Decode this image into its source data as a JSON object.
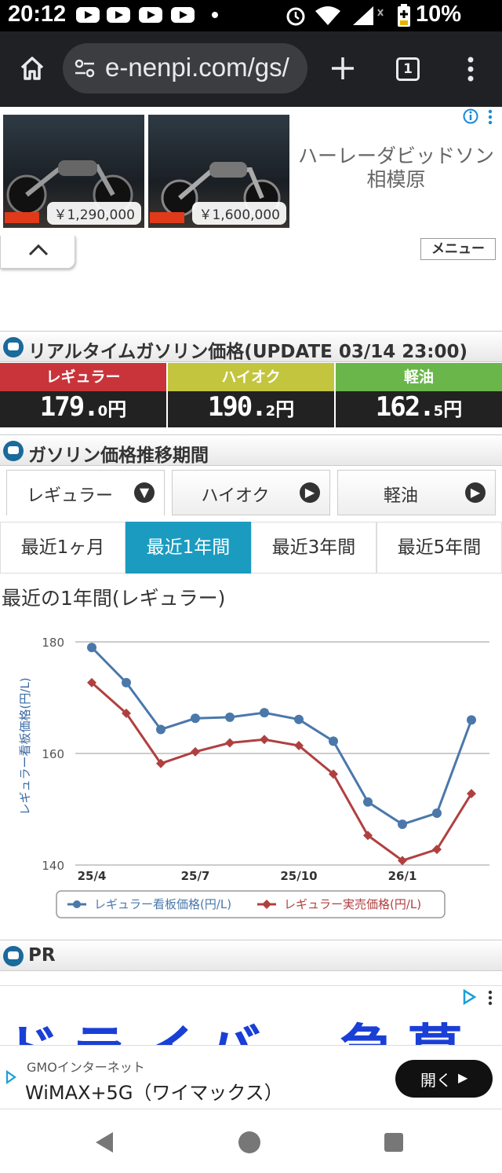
{
  "status": {
    "time": "20:12",
    "battery": "10%"
  },
  "browser": {
    "url": "e-nenpi.com/gs/",
    "tab_count": "1"
  },
  "ad_top": {
    "prices": [
      "￥1,290,000",
      "￥1,600,000"
    ],
    "dealer_line1": "ハーレーダビッドソン",
    "dealer_line2": "相模原"
  },
  "menu_label": "メニュー",
  "realtime": {
    "title": "リアルタイムガソリン価格(UPDATE 03/14 23:00)",
    "fuels": [
      {
        "name": "レギュラー",
        "int": "179.",
        "dec": "0",
        "unit": "円",
        "color": "#c9343b"
      },
      {
        "name": "ハイオク",
        "int": "190.",
        "dec": "2",
        "unit": "円",
        "color": "#c3c53e"
      },
      {
        "name": "軽油",
        "int": "162.",
        "dec": "5",
        "unit": "円",
        "color": "#6ab64a"
      }
    ]
  },
  "trend": {
    "title": "ガソリン価格推移期間",
    "fuel_tabs": [
      "レギュラー",
      "ハイオク",
      "軽油"
    ],
    "periods": [
      "最近1ヶ月",
      "最近1年間",
      "最近3年間",
      "最近5年間"
    ],
    "selected_period": 1,
    "chart_heading": "最近の1年間(レギュラー)"
  },
  "chart_data": {
    "type": "line",
    "ylabel": "レギュラー看板価格(円/L)",
    "ylim": [
      140,
      180
    ],
    "yticks": [
      140,
      160,
      180
    ],
    "xticks": [
      "25/4",
      "25/7",
      "25/10",
      "26/1"
    ],
    "grid": true,
    "legend_position": "bottom",
    "series": [
      {
        "name": "レギュラー看板価格(円/L)",
        "color": "#4a78aa",
        "values": [
          179.0,
          172.7,
          164.3,
          166.3,
          166.5,
          167.3,
          166.1,
          162.2,
          151.3,
          147.3,
          149.3,
          166.0
        ]
      },
      {
        "name": "レギュラー実売価格(円/L)",
        "color": "#b04040",
        "values": [
          172.7,
          167.2,
          158.2,
          160.3,
          161.9,
          162.5,
          161.4,
          156.3,
          145.3,
          140.8,
          142.8,
          152.8
        ]
      }
    ]
  },
  "pr": {
    "title": "PR",
    "banner_text": "ドライバー急募",
    "advertiser": "GMOインターネット",
    "product": "WiMAX+5G（ワイマックス）",
    "open_label": "開く"
  }
}
